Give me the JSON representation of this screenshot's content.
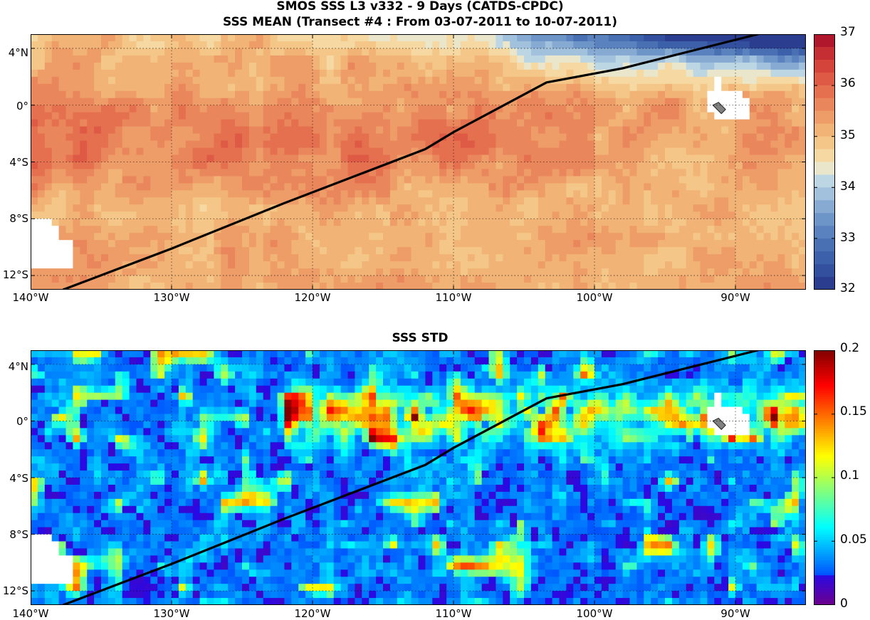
{
  "figure": {
    "title_line1": "SMOS SSS L3 v332 - 9 Days (CATDS-CPDC)",
    "title_line2": "SSS MEAN (Transect #4 : From 03-07-2011 to 10-07-2011)",
    "title_lower": "SSS STD"
  },
  "axes": {
    "lat_ticks": [
      "4°N",
      "0°",
      "4°S",
      "8°S",
      "12°S"
    ],
    "lon_ticks": [
      "140°W",
      "130°W",
      "120°W",
      "110°W",
      "100°W",
      "90°W"
    ],
    "lat_range": [
      -13,
      5
    ],
    "lon_range": [
      -140,
      -85
    ],
    "grid": true
  },
  "colorbars": {
    "mean": {
      "min": 32,
      "max": 37,
      "ticks": [
        "37",
        "36",
        "35",
        "34",
        "33",
        "32"
      ],
      "levels": 20
    },
    "std": {
      "min": 0,
      "max": 0.2,
      "ticks": [
        "0.2",
        "0.15",
        "0.1",
        "0.05",
        "0"
      ],
      "colormap": "jet"
    }
  },
  "transect": {
    "color": "#000000",
    "points": [
      [
        -137.7,
        -13
      ],
      [
        -130,
        -10.1
      ],
      [
        -122,
        -6.9
      ],
      [
        -112,
        -3.1
      ],
      [
        -110,
        -1.9
      ],
      [
        -103.4,
        1.6
      ],
      [
        -98,
        2.6
      ],
      [
        -88.4,
        5
      ]
    ]
  },
  "colors": {
    "salty": "#e0604a",
    "neutral": "#f6d9a2",
    "fresh": "#4a6fae",
    "land_mask": "#ffffff",
    "island": "#808080"
  }
}
